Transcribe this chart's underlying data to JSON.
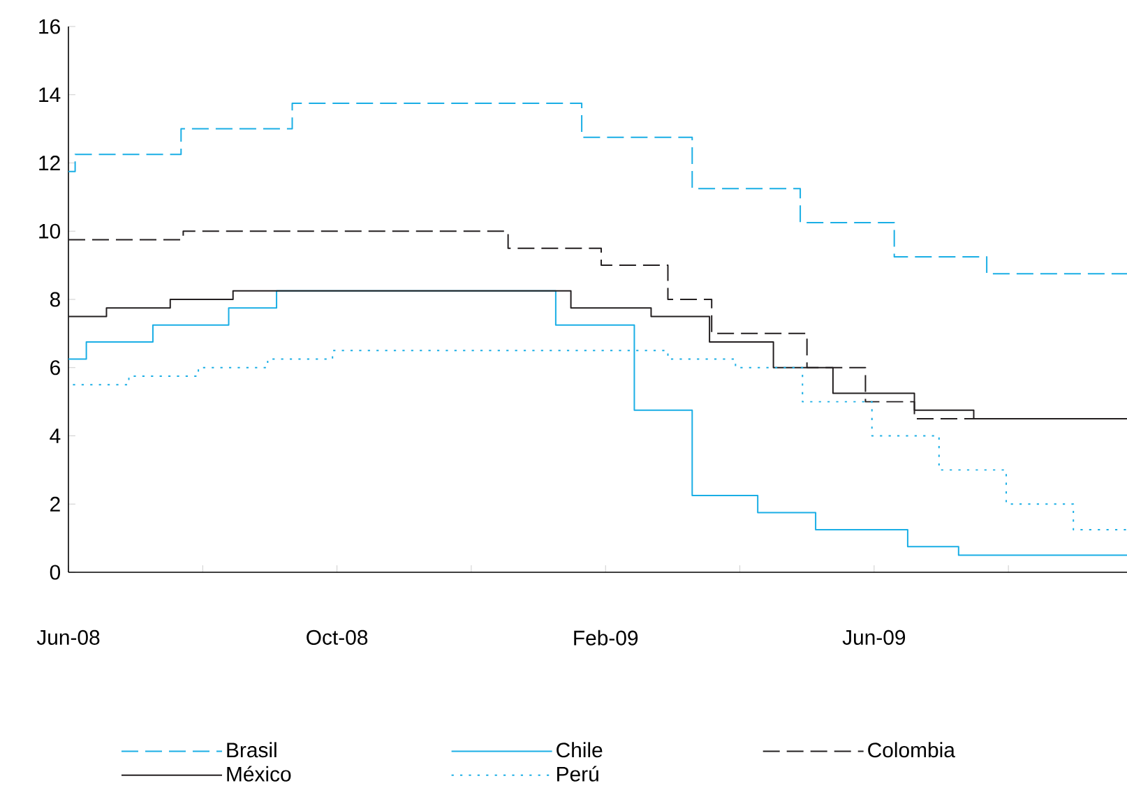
{
  "chart_data": {
    "type": "step",
    "xlim": [
      "2008-06-01",
      "2009-09-24"
    ],
    "ylim": [
      0,
      16
    ],
    "xticks": [
      {
        "value": "2008-06",
        "label": "Jun-08"
      },
      {
        "value": "2008-08",
        "label": null
      },
      {
        "value": "2008-10",
        "label": "Oct-08"
      },
      {
        "value": "2008-12",
        "label": null
      },
      {
        "value": "2009-02",
        "label": "Feb-09"
      },
      {
        "value": "2009-04",
        "label": null
      },
      {
        "value": "2009-06",
        "label": "Jun-09"
      },
      {
        "value": "2009-08",
        "label": null
      }
    ],
    "yticks": [
      0,
      2,
      4,
      6,
      8,
      10,
      12,
      14,
      16
    ],
    "legend": "bottom",
    "series": [
      {
        "name": "Brasil",
        "color": "#1aaee5",
        "line_style": "dashed",
        "x": [
          "2008-06-01",
          "2008-06-04",
          "2008-07-22",
          "2008-09-11",
          "2009-01-21",
          "2009-03-10",
          "2009-04-28",
          "2009-06-10",
          "2009-07-22",
          "2009-09-24"
        ],
        "values": [
          11.75,
          12.25,
          13,
          13.75,
          12.75,
          11.25,
          10.25,
          9.25,
          8.75,
          8.75
        ]
      },
      {
        "name": "Chile",
        "color": "#1aaee5",
        "line_style": "solid",
        "x": [
          "2008-06-01",
          "2008-06-09",
          "2008-07-09",
          "2008-08-13",
          "2008-09-04",
          "2009-01-09",
          "2009-02-13",
          "2009-03-10",
          "2009-04-09",
          "2009-05-05",
          "2009-06-16",
          "2009-07-09",
          "2009-09-24"
        ],
        "values": [
          6.25,
          6.75,
          7.25,
          7.75,
          8.25,
          7.25,
          4.75,
          2.25,
          1.75,
          1.25,
          0.75,
          0.5,
          0.5
        ]
      },
      {
        "name": "Colombia",
        "color": "#231f20",
        "line_style": "dashed",
        "x": [
          "2008-06-01",
          "2008-07-23",
          "2008-12-18",
          "2009-01-30",
          "2009-02-27",
          "2009-03-19",
          "2009-05-01",
          "2009-05-28",
          "2009-06-19",
          "2009-09-24"
        ],
        "values": [
          9.75,
          10,
          9.5,
          9,
          8,
          7,
          6,
          5,
          4.5,
          4.5
        ]
      },
      {
        "name": "México",
        "color": "#231f20",
        "line_style": "solid",
        "x": [
          "2008-06-01",
          "2008-06-18",
          "2008-07-17",
          "2008-08-15",
          "2009-01-16",
          "2009-02-20",
          "2009-03-18",
          "2009-04-16",
          "2009-05-13",
          "2009-06-19",
          "2009-07-16",
          "2009-09-24"
        ],
        "values": [
          7.5,
          7.75,
          8,
          8.25,
          7.75,
          7.5,
          6.75,
          6,
          5.25,
          4.75,
          4.5,
          4.5
        ]
      },
      {
        "name": "Perú",
        "color": "#1aaee5",
        "line_style": "dotted",
        "x": [
          "2008-06-03",
          "2008-06-28",
          "2008-07-30",
          "2008-08-31",
          "2008-09-29",
          "2009-02-27",
          "2009-03-30",
          "2009-04-29",
          "2009-05-31",
          "2009-06-30",
          "2009-07-31",
          "2009-08-31",
          "2009-09-24"
        ],
        "values": [
          5.5,
          5.75,
          6,
          6.25,
          6.5,
          6.25,
          6,
          5,
          4,
          3,
          2,
          1.25,
          1.25
        ]
      }
    ]
  }
}
